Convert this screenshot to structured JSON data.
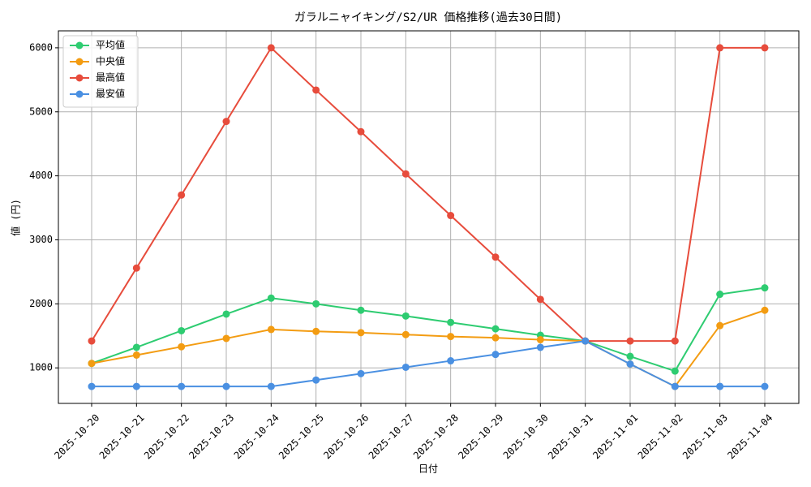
{
  "chart_data": {
    "type": "line",
    "title": "ガラルニャイキング/S2/UR 価格推移(過去30日間)",
    "x_label": "日付",
    "y_label": "値 (円)",
    "categories": [
      "2025-10-20",
      "2025-10-21",
      "2025-10-22",
      "2025-10-23",
      "2025-10-24",
      "2025-10-25",
      "2025-10-26",
      "2025-10-27",
      "2025-10-28",
      "2025-10-29",
      "2025-10-30",
      "2025-10-31",
      "2025-11-01",
      "2025-11-02",
      "2025-11-03",
      "2025-11-04"
    ],
    "series": [
      {
        "name": "平均値",
        "color": "#2ecc71",
        "values": [
          1070,
          1320,
          1580,
          1840,
          2090,
          2000,
          1900,
          1810,
          1710,
          1610,
          1510,
          1420,
          1180,
          950,
          2150,
          2250
        ]
      },
      {
        "name": "中央値",
        "color": "#f39c12",
        "values": [
          1070,
          1200,
          1330,
          1460,
          1600,
          1570,
          1550,
          1520,
          1490,
          1470,
          1440,
          1420,
          1060,
          710,
          1660,
          1900
        ]
      },
      {
        "name": "最高値",
        "color": "#e74c3c",
        "values": [
          1420,
          2560,
          3700,
          4850,
          6000,
          5340,
          4690,
          4030,
          3380,
          2730,
          2070,
          1420,
          1420,
          1420,
          6000,
          6000
        ]
      },
      {
        "name": "最安値",
        "color": "#4a90e2",
        "values": [
          710,
          710,
          710,
          710,
          710,
          810,
          910,
          1010,
          1110,
          1210,
          1320,
          1420,
          1060,
          710,
          710,
          710
        ]
      }
    ],
    "ylim": [
      445,
      6265
    ],
    "yticks": [
      1000,
      2000,
      3000,
      4000,
      5000,
      6000
    ],
    "grid": true,
    "legend": "upper-left"
  }
}
